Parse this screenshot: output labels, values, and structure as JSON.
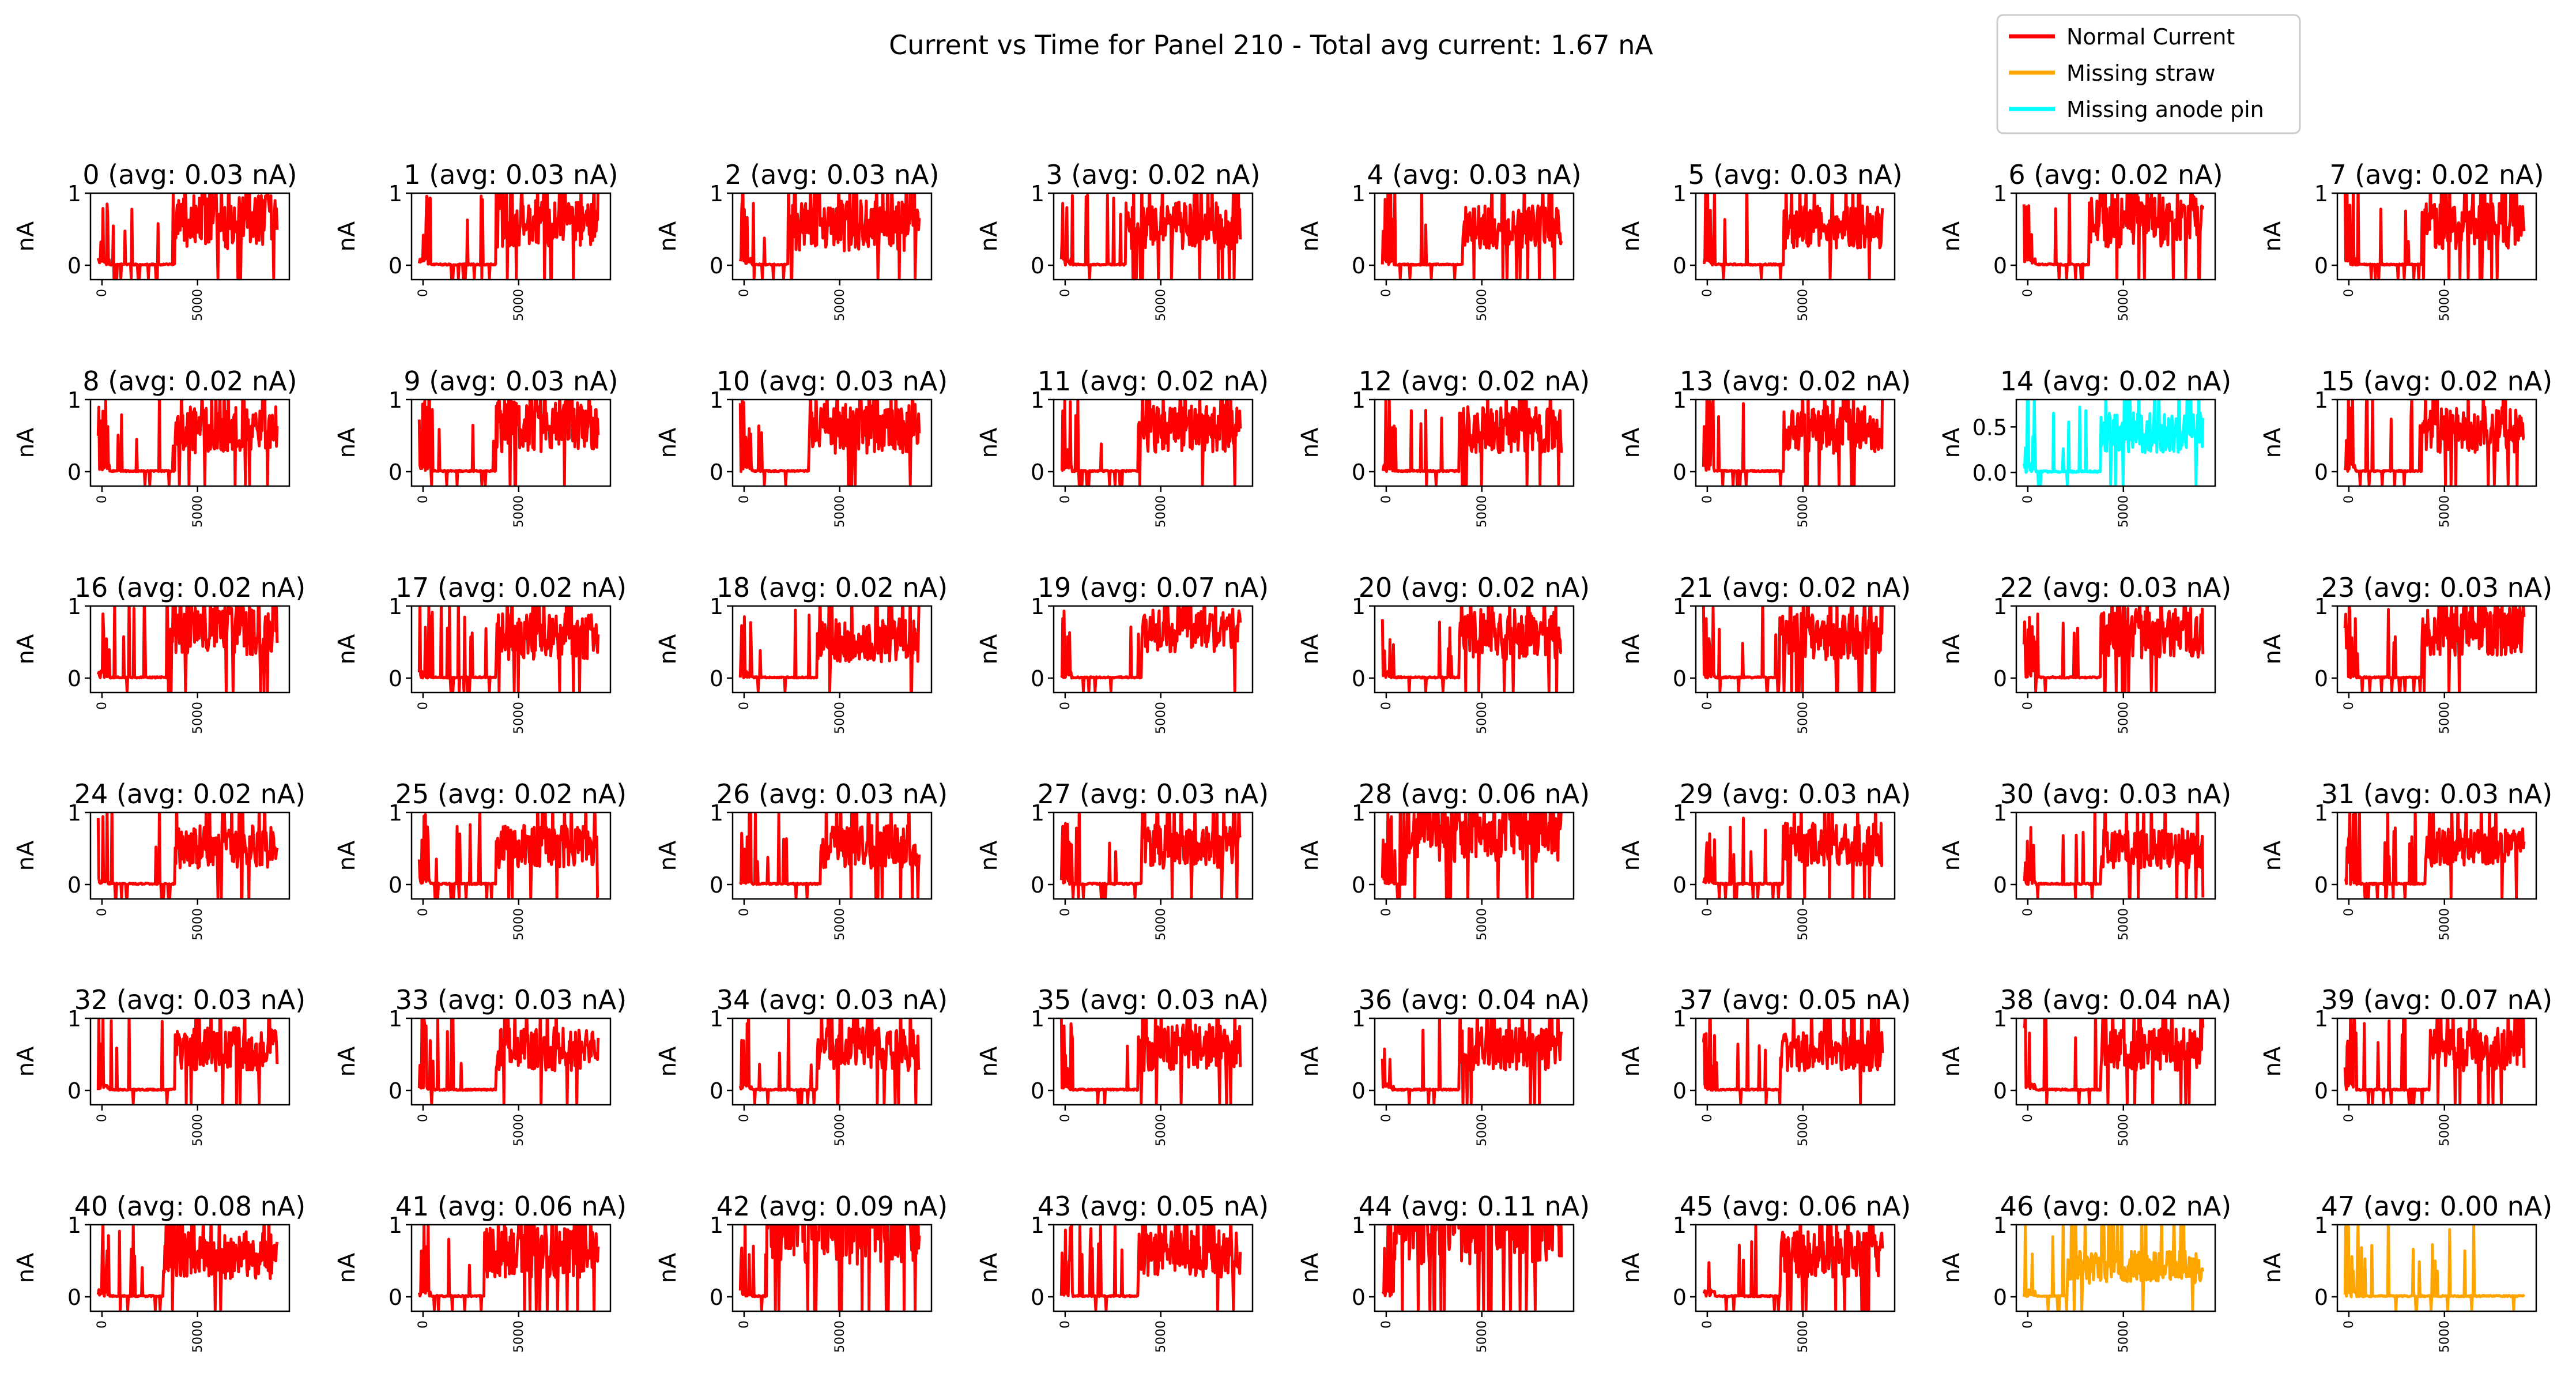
{
  "figure": {
    "title": "Current vs Time for Panel 210 - Total avg current: 1.67 nA"
  },
  "legend": {
    "placement": "top-right",
    "entries": [
      {
        "label": "Normal Current",
        "color": "#ff0000"
      },
      {
        "label": "Missing straw",
        "color": "#ffa500"
      },
      {
        "label": "Missing anode pin",
        "color": "#00ffff"
      }
    ]
  },
  "chart_data": {
    "type": "line",
    "grid": false,
    "layout": "6 rows x 8 columns of small panels",
    "xtick_labels": [
      "0",
      "5000"
    ],
    "xticks": [
      0,
      5000
    ],
    "xlim": [
      -600,
      9800
    ],
    "ylabel": "nA",
    "channels": [
      {
        "title": "0 (avg: 0.03 nA)",
        "status": "normal",
        "color": "#ff0000",
        "ylim": [
          -0.2,
          1
        ],
        "yticks": [
          0,
          1
        ],
        "ytick_labels": [
          "0",
          "1"
        ],
        "turn_on": 3800,
        "baseline": 0.25,
        "spread": 0.75
      },
      {
        "title": "1 (avg: 0.03 nA)",
        "status": "normal",
        "color": "#ff0000",
        "ylim": [
          -0.2,
          1
        ],
        "yticks": [
          0,
          1
        ],
        "ytick_labels": [
          "0",
          "1"
        ],
        "turn_on": 3800,
        "baseline": 0.28,
        "spread": 0.65
      },
      {
        "title": "2 (avg: 0.03 nA)",
        "status": "normal",
        "color": "#ff0000",
        "ylim": [
          -0.2,
          1
        ],
        "yticks": [
          0,
          1
        ],
        "ytick_labels": [
          "0",
          "1"
        ],
        "turn_on": 2300,
        "baseline": 0.22,
        "spread": 0.7
      },
      {
        "title": "3 (avg: 0.02 nA)",
        "status": "normal",
        "color": "#ff0000",
        "ylim": [
          -0.2,
          1
        ],
        "yticks": [
          0,
          1
        ],
        "ytick_labels": [
          "0",
          "1"
        ],
        "turn_on": 3200,
        "baseline": 0.25,
        "spread": 0.65
      },
      {
        "title": "4 (avg: 0.03 nA)",
        "status": "normal",
        "color": "#ff0000",
        "ylim": [
          -0.2,
          1
        ],
        "yticks": [
          0,
          1
        ],
        "ytick_labels": [
          "0",
          "1"
        ],
        "turn_on": 4000,
        "baseline": 0.25,
        "spread": 0.6
      },
      {
        "title": "5 (avg: 0.03 nA)",
        "status": "normal",
        "color": "#ff0000",
        "ylim": [
          -0.2,
          1
        ],
        "yticks": [
          0,
          1
        ],
        "ytick_labels": [
          "0",
          "1"
        ],
        "turn_on": 4000,
        "baseline": 0.25,
        "spread": 0.6
      },
      {
        "title": "6 (avg: 0.02 nA)",
        "status": "normal",
        "color": "#ff0000",
        "ylim": [
          -0.2,
          1
        ],
        "yticks": [
          0,
          1
        ],
        "ytick_labels": [
          "0",
          "1"
        ],
        "turn_on": 3200,
        "baseline": 0.28,
        "spread": 0.7
      },
      {
        "title": "7 (avg: 0.02 nA)",
        "status": "normal",
        "color": "#ff0000",
        "ylim": [
          -0.2,
          1
        ],
        "yticks": [
          0,
          1
        ],
        "ytick_labels": [
          "0",
          "1"
        ],
        "turn_on": 3800,
        "baseline": 0.25,
        "spread": 0.65
      },
      {
        "title": "8 (avg: 0.02 nA)",
        "status": "normal",
        "color": "#ff0000",
        "ylim": [
          -0.2,
          1
        ],
        "yticks": [
          0,
          1
        ],
        "ytick_labels": [
          "0",
          "1"
        ],
        "turn_on": 3800,
        "baseline": 0.28,
        "spread": 0.65
      },
      {
        "title": "9 (avg: 0.03 nA)",
        "status": "normal",
        "color": "#ff0000",
        "ylim": [
          -0.2,
          1
        ],
        "yticks": [
          0,
          1
        ],
        "ytick_labels": [
          "0",
          "1"
        ],
        "turn_on": 3800,
        "baseline": 0.3,
        "spread": 0.75
      },
      {
        "title": "10 (avg: 0.03 nA)",
        "status": "normal",
        "color": "#ff0000",
        "ylim": [
          -0.2,
          1
        ],
        "yticks": [
          0,
          1
        ],
        "ytick_labels": [
          "0",
          "1"
        ],
        "turn_on": 3400,
        "baseline": 0.28,
        "spread": 0.7
      },
      {
        "title": "11 (avg: 0.02 nA)",
        "status": "normal",
        "color": "#ff0000",
        "ylim": [
          -0.2,
          1
        ],
        "yticks": [
          0,
          1
        ],
        "ytick_labels": [
          "0",
          "1"
        ],
        "turn_on": 3800,
        "baseline": 0.3,
        "spread": 0.65
      },
      {
        "title": "12 (avg: 0.02 nA)",
        "status": "normal",
        "color": "#ff0000",
        "ylim": [
          -0.2,
          1
        ],
        "yticks": [
          0,
          1
        ],
        "ytick_labels": [
          "0",
          "1"
        ],
        "turn_on": 3800,
        "baseline": 0.28,
        "spread": 0.65
      },
      {
        "title": "13 (avg: 0.02 nA)",
        "status": "normal",
        "color": "#ff0000",
        "ylim": [
          -0.2,
          1
        ],
        "yticks": [
          0,
          1
        ],
        "ytick_labels": [
          "0",
          "1"
        ],
        "turn_on": 4000,
        "baseline": 0.28,
        "spread": 0.65
      },
      {
        "title": "14 (avg: 0.02 nA)",
        "status": "missing_anode_pin",
        "color": "#00ffff",
        "ylim": [
          -0.15,
          0.8
        ],
        "yticks": [
          0,
          0.5
        ],
        "ytick_labels": [
          "0.0",
          "0.5"
        ],
        "turn_on": 3800,
        "baseline": 0.3,
        "spread": 0.55
      },
      {
        "title": "15 (avg: 0.02 nA)",
        "status": "normal",
        "color": "#ff0000",
        "ylim": [
          -0.2,
          1
        ],
        "yticks": [
          0,
          1
        ],
        "ytick_labels": [
          "0",
          "1"
        ],
        "turn_on": 3800,
        "baseline": 0.28,
        "spread": 0.65
      },
      {
        "title": "16 (avg: 0.02 nA)",
        "status": "normal",
        "color": "#ff0000",
        "ylim": [
          -0.2,
          1
        ],
        "yticks": [
          0,
          1
        ],
        "ytick_labels": [
          "0",
          "1"
        ],
        "turn_on": 3400,
        "baseline": 0.35,
        "spread": 0.7
      },
      {
        "title": "17 (avg: 0.02 nA)",
        "status": "normal",
        "color": "#ff0000",
        "ylim": [
          -0.2,
          1
        ],
        "yticks": [
          0,
          1
        ],
        "ytick_labels": [
          "0",
          "1"
        ],
        "turn_on": 3800,
        "baseline": 0.28,
        "spread": 0.65
      },
      {
        "title": "18 (avg: 0.02 nA)",
        "status": "normal",
        "color": "#ff0000",
        "ylim": [
          -0.2,
          1
        ],
        "yticks": [
          0,
          1
        ],
        "ytick_labels": [
          "0",
          "1"
        ],
        "turn_on": 3800,
        "baseline": 0.25,
        "spread": 0.6
      },
      {
        "title": "19 (avg: 0.07 nA)",
        "status": "normal",
        "color": "#ff0000",
        "ylim": [
          -0.2,
          1
        ],
        "yticks": [
          0,
          1
        ],
        "ytick_labels": [
          "0",
          "1"
        ],
        "turn_on": 4000,
        "baseline": 0.4,
        "spread": 0.6
      },
      {
        "title": "20 (avg: 0.02 nA)",
        "status": "normal",
        "color": "#ff0000",
        "ylim": [
          -0.2,
          1
        ],
        "yticks": [
          0,
          1
        ],
        "ytick_labels": [
          "0",
          "1"
        ],
        "turn_on": 3800,
        "baseline": 0.28,
        "spread": 0.7
      },
      {
        "title": "21 (avg: 0.02 nA)",
        "status": "normal",
        "color": "#ff0000",
        "ylim": [
          -0.2,
          1
        ],
        "yticks": [
          0,
          1
        ],
        "ytick_labels": [
          "0",
          "1"
        ],
        "turn_on": 3800,
        "baseline": 0.28,
        "spread": 0.65
      },
      {
        "title": "22 (avg: 0.03 nA)",
        "status": "normal",
        "color": "#ff0000",
        "ylim": [
          -0.2,
          1
        ],
        "yticks": [
          0,
          1
        ],
        "ytick_labels": [
          "0",
          "1"
        ],
        "turn_on": 3800,
        "baseline": 0.3,
        "spread": 0.7
      },
      {
        "title": "23 (avg: 0.03 nA)",
        "status": "normal",
        "color": "#ff0000",
        "ylim": [
          -0.2,
          1
        ],
        "yticks": [
          0,
          1
        ],
        "ytick_labels": [
          "0",
          "1"
        ],
        "turn_on": 3800,
        "baseline": 0.35,
        "spread": 0.75
      },
      {
        "title": "24 (avg: 0.02 nA)",
        "status": "normal",
        "color": "#ff0000",
        "ylim": [
          -0.2,
          1
        ],
        "yticks": [
          0,
          1
        ],
        "ytick_labels": [
          "0",
          "1"
        ],
        "turn_on": 3800,
        "baseline": 0.25,
        "spread": 0.6
      },
      {
        "title": "25 (avg: 0.02 nA)",
        "status": "normal",
        "color": "#ff0000",
        "ylim": [
          -0.2,
          1
        ],
        "yticks": [
          0,
          1
        ],
        "ytick_labels": [
          "0",
          "1"
        ],
        "turn_on": 3800,
        "baseline": 0.25,
        "spread": 0.6
      },
      {
        "title": "26 (avg: 0.03 nA)",
        "status": "normal",
        "color": "#ff0000",
        "ylim": [
          -0.2,
          1
        ],
        "yticks": [
          0,
          1
        ],
        "ytick_labels": [
          "0",
          "1"
        ],
        "turn_on": 4000,
        "baseline": 0.25,
        "spread": 0.6
      },
      {
        "title": "27 (avg: 0.03 nA)",
        "status": "normal",
        "color": "#ff0000",
        "ylim": [
          -0.2,
          1
        ],
        "yticks": [
          0,
          1
        ],
        "ytick_labels": [
          "0",
          "1"
        ],
        "turn_on": 4000,
        "baseline": 0.25,
        "spread": 0.6
      },
      {
        "title": "28 (avg: 0.06 nA)",
        "status": "normal",
        "color": "#ff0000",
        "ylim": [
          -0.2,
          1
        ],
        "yticks": [
          0,
          1
        ],
        "ytick_labels": [
          "0",
          "1"
        ],
        "turn_on": 1000,
        "baseline": 0.35,
        "spread": 0.9
      },
      {
        "title": "29 (avg: 0.03 nA)",
        "status": "normal",
        "color": "#ff0000",
        "ylim": [
          -0.2,
          1
        ],
        "yticks": [
          0,
          1
        ],
        "ytick_labels": [
          "0",
          "1"
        ],
        "turn_on": 4000,
        "baseline": 0.28,
        "spread": 0.6
      },
      {
        "title": "30 (avg: 0.03 nA)",
        "status": "normal",
        "color": "#ff0000",
        "ylim": [
          -0.2,
          1
        ],
        "yticks": [
          0,
          1
        ],
        "ytick_labels": [
          "0",
          "1"
        ],
        "turn_on": 3800,
        "baseline": 0.25,
        "spread": 0.55
      },
      {
        "title": "31 (avg: 0.03 nA)",
        "status": "normal",
        "color": "#ff0000",
        "ylim": [
          -0.2,
          1
        ],
        "yticks": [
          0,
          1
        ],
        "ytick_labels": [
          "0",
          "1"
        ],
        "turn_on": 4000,
        "baseline": 0.28,
        "spread": 0.55
      },
      {
        "title": "32 (avg: 0.03 nA)",
        "status": "normal",
        "color": "#ff0000",
        "ylim": [
          -0.2,
          1
        ],
        "yticks": [
          0,
          1
        ],
        "ytick_labels": [
          "0",
          "1"
        ],
        "turn_on": 3800,
        "baseline": 0.3,
        "spread": 0.6
      },
      {
        "title": "33 (avg: 0.03 nA)",
        "status": "normal",
        "color": "#ff0000",
        "ylim": [
          -0.2,
          1
        ],
        "yticks": [
          0,
          1
        ],
        "ytick_labels": [
          "0",
          "1"
        ],
        "turn_on": 3800,
        "baseline": 0.3,
        "spread": 0.6
      },
      {
        "title": "34 (avg: 0.03 nA)",
        "status": "normal",
        "color": "#ff0000",
        "ylim": [
          -0.2,
          1
        ],
        "yticks": [
          0,
          1
        ],
        "ytick_labels": [
          "0",
          "1"
        ],
        "turn_on": 3800,
        "baseline": 0.3,
        "spread": 0.6
      },
      {
        "title": "35 (avg: 0.03 nA)",
        "status": "normal",
        "color": "#ff0000",
        "ylim": [
          -0.2,
          1
        ],
        "yticks": [
          0,
          1
        ],
        "ytick_labels": [
          "0",
          "1"
        ],
        "turn_on": 3800,
        "baseline": 0.3,
        "spread": 0.65
      },
      {
        "title": "36 (avg: 0.04 nA)",
        "status": "normal",
        "color": "#ff0000",
        "ylim": [
          -0.2,
          1
        ],
        "yticks": [
          0,
          1
        ],
        "ytick_labels": [
          "0",
          "1"
        ],
        "turn_on": 3800,
        "baseline": 0.3,
        "spread": 0.6
      },
      {
        "title": "37 (avg: 0.05 nA)",
        "status": "normal",
        "color": "#ff0000",
        "ylim": [
          -0.2,
          1
        ],
        "yticks": [
          0,
          1
        ],
        "ytick_labels": [
          "0",
          "1"
        ],
        "turn_on": 3800,
        "baseline": 0.3,
        "spread": 0.55
      },
      {
        "title": "38 (avg: 0.04 nA)",
        "status": "normal",
        "color": "#ff0000",
        "ylim": [
          -0.2,
          1
        ],
        "yticks": [
          0,
          1
        ],
        "ytick_labels": [
          "0",
          "1"
        ],
        "turn_on": 3800,
        "baseline": 0.3,
        "spread": 0.6
      },
      {
        "title": "39 (avg: 0.07 nA)",
        "status": "normal",
        "color": "#ff0000",
        "ylim": [
          -0.2,
          1
        ],
        "yticks": [
          0,
          1
        ],
        "ytick_labels": [
          "0",
          "1"
        ],
        "turn_on": 4200,
        "baseline": 0.3,
        "spread": 0.6
      },
      {
        "title": "40 (avg: 0.08 nA)",
        "status": "normal",
        "color": "#ff0000",
        "ylim": [
          -0.2,
          1
        ],
        "yticks": [
          0,
          1
        ],
        "ytick_labels": [
          "0",
          "1"
        ],
        "turn_on": 3200,
        "baseline": 0.28,
        "spread": 0.65
      },
      {
        "title": "41 (avg: 0.06 nA)",
        "status": "normal",
        "color": "#ff0000",
        "ylim": [
          -0.2,
          1
        ],
        "yticks": [
          0,
          1
        ],
        "ytick_labels": [
          "0",
          "1"
        ],
        "turn_on": 3200,
        "baseline": 0.28,
        "spread": 0.7
      },
      {
        "title": "42 (avg: 0.09 nA)",
        "status": "normal",
        "color": "#ff0000",
        "ylim": [
          -0.2,
          1
        ],
        "yticks": [
          0,
          1
        ],
        "ytick_labels": [
          "0",
          "1"
        ],
        "turn_on": 1200,
        "baseline": 0.5,
        "spread": 1.2
      },
      {
        "title": "43 (avg: 0.05 nA)",
        "status": "normal",
        "color": "#ff0000",
        "ylim": [
          -0.2,
          1
        ],
        "yticks": [
          0,
          1
        ],
        "ytick_labels": [
          "0",
          "1"
        ],
        "turn_on": 3800,
        "baseline": 0.3,
        "spread": 0.65
      },
      {
        "title": "44 (avg: 0.11 nA)",
        "status": "normal",
        "color": "#ff0000",
        "ylim": [
          -0.2,
          1
        ],
        "yticks": [
          0,
          1
        ],
        "ytick_labels": [
          "0",
          "1"
        ],
        "turn_on": 400,
        "baseline": 0.5,
        "spread": 1.2
      },
      {
        "title": "45 (avg: 0.06 nA)",
        "status": "normal",
        "color": "#ff0000",
        "ylim": [
          -0.2,
          1
        ],
        "yticks": [
          0,
          1
        ],
        "ytick_labels": [
          "0",
          "1"
        ],
        "turn_on": 3800,
        "baseline": 0.3,
        "spread": 0.65
      },
      {
        "title": "46 (avg: 0.02 nA)",
        "status": "missing_straw",
        "color": "#ffa500",
        "ylim": [
          -0.2,
          1
        ],
        "yticks": [
          0,
          1
        ],
        "ytick_labels": [
          "0",
          "1"
        ],
        "turn_on": 2000,
        "baseline": 0.2,
        "spread": 0.45
      },
      {
        "title": "47 (avg: 0.00 nA)",
        "status": "missing_straw",
        "color": "#ffa500",
        "ylim": [
          -0.2,
          1
        ],
        "yticks": [
          0,
          1
        ],
        "ytick_labels": [
          "0",
          "1"
        ],
        "turn_on": 20000,
        "baseline": 0.0,
        "spread": 0.03
      }
    ]
  }
}
